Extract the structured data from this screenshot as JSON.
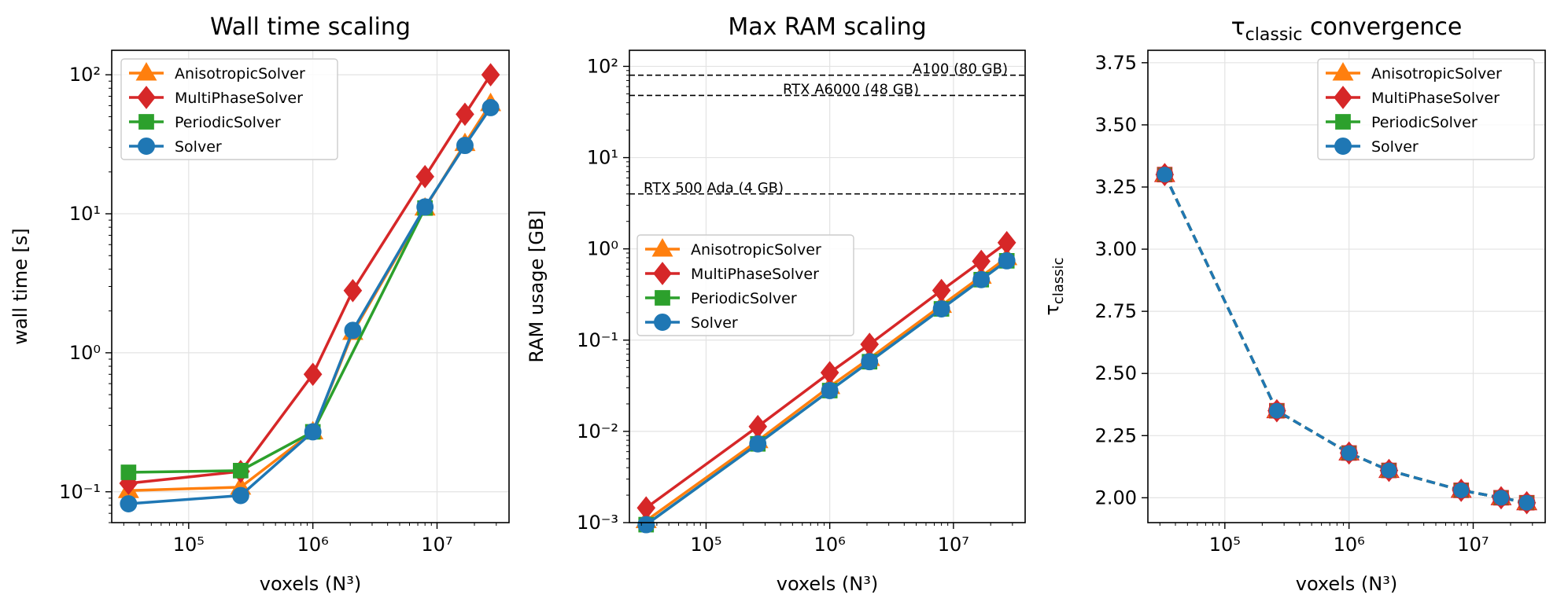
{
  "series_styles": {
    "AnisotropicSolver": {
      "color": "#ff7f0e",
      "marker": "triangle"
    },
    "MultiPhaseSolver": {
      "color": "#d62728",
      "marker": "diamond"
    },
    "PeriodicSolver": {
      "color": "#2ca02c",
      "marker": "square"
    },
    "Solver": {
      "color": "#1f77b4",
      "marker": "circle"
    }
  },
  "chart_data": [
    {
      "type": "line",
      "title": "Wall time scaling",
      "xlabel": "voxels (N³)",
      "ylabel": "wall time [s]",
      "xscale": "log",
      "yscale": "log",
      "xlim": [
        24000,
        38000000
      ],
      "ylim": [
        0.06,
        150
      ],
      "x_ticks": [
        {
          "value": 100000,
          "label": "10⁵"
        },
        {
          "value": 1000000,
          "label": "10⁶"
        },
        {
          "value": 10000000,
          "label": "10⁷"
        }
      ],
      "y_ticks": [
        {
          "value": 0.1,
          "label": "10⁻¹"
        },
        {
          "value": 1,
          "label": "10⁰"
        },
        {
          "value": 10,
          "label": "10¹"
        },
        {
          "value": 100,
          "label": "10²"
        }
      ],
      "grid": true,
      "legend_position": "top-left",
      "x": [
        32768,
        262144,
        1000000,
        2097152,
        8000000,
        16777216,
        27000000
      ],
      "series": [
        {
          "name": "AnisotropicSolver",
          "values": [
            0.102,
            0.108,
            0.27,
            1.4,
            11.0,
            32,
            62
          ]
        },
        {
          "name": "MultiPhaseSolver",
          "values": [
            0.115,
            0.14,
            0.7,
            2.8,
            18.5,
            52,
            100
          ]
        },
        {
          "name": "PeriodicSolver",
          "values": [
            0.138,
            0.142,
            0.27,
            null,
            11.0,
            null,
            null
          ]
        },
        {
          "name": "Solver",
          "values": [
            0.082,
            0.094,
            0.27,
            1.45,
            11.2,
            31,
            58
          ]
        }
      ]
    },
    {
      "type": "line",
      "title": "Max RAM scaling",
      "xlabel": "voxels (N³)",
      "ylabel": "RAM usage [GB]",
      "xscale": "log",
      "yscale": "log",
      "xlim": [
        24000,
        38000000
      ],
      "ylim": [
        0.001,
        150
      ],
      "x_ticks": [
        {
          "value": 100000,
          "label": "10⁵"
        },
        {
          "value": 1000000,
          "label": "10⁶"
        },
        {
          "value": 10000000,
          "label": "10⁷"
        }
      ],
      "y_ticks": [
        {
          "value": 0.001,
          "label": "10⁻³"
        },
        {
          "value": 0.01,
          "label": "10⁻²"
        },
        {
          "value": 0.1,
          "label": "10⁻¹"
        },
        {
          "value": 1,
          "label": "10⁰"
        },
        {
          "value": 10,
          "label": "10¹"
        },
        {
          "value": 100,
          "label": "10²"
        }
      ],
      "grid": true,
      "legend_position": "center-left",
      "x": [
        32768,
        262144,
        1000000,
        2097152,
        8000000,
        16777216,
        27000000
      ],
      "series": [
        {
          "name": "AnisotropicSolver",
          "values": [
            0.00105,
            0.0079,
            0.031,
            0.063,
            0.24,
            0.5,
            0.8
          ]
        },
        {
          "name": "MultiPhaseSolver",
          "values": [
            0.00145,
            0.0113,
            0.044,
            0.09,
            0.35,
            0.73,
            1.17
          ]
        },
        {
          "name": "PeriodicSolver",
          "values": [
            0.00095,
            0.0073,
            0.028,
            0.058,
            0.22,
            0.46,
            0.74
          ]
        },
        {
          "name": "Solver",
          "values": [
            0.00095,
            0.0073,
            0.028,
            0.058,
            0.22,
            0.46,
            0.74
          ]
        }
      ],
      "reference_lines": [
        {
          "label": "A100 (80 GB)",
          "value": 80,
          "label_anchor": "end"
        },
        {
          "label": "RTX A6000 (48 GB)",
          "value": 48,
          "label_anchor": "middle"
        },
        {
          "label": "RTX 500 Ada (4 GB)",
          "value": 4,
          "label_anchor": "start"
        }
      ]
    },
    {
      "type": "line",
      "title_main": "τ",
      "title_sub": "classic",
      "title_rest": " convergence",
      "xlabel": "voxels (N³)",
      "ylabel_main": "τ",
      "ylabel_sub": "classic",
      "xscale": "log",
      "yscale": "linear",
      "xlim": [
        24000,
        38000000
      ],
      "ylim": [
        1.9,
        3.8
      ],
      "x_ticks": [
        {
          "value": 100000,
          "label": "10⁵"
        },
        {
          "value": 1000000,
          "label": "10⁶"
        },
        {
          "value": 10000000,
          "label": "10⁷"
        }
      ],
      "y_ticks": [
        {
          "value": 2.0,
          "label": "2.00"
        },
        {
          "value": 2.25,
          "label": "2.25"
        },
        {
          "value": 2.5,
          "label": "2.50"
        },
        {
          "value": 2.75,
          "label": "2.75"
        },
        {
          "value": 3.0,
          "label": "3.00"
        },
        {
          "value": 3.25,
          "label": "3.25"
        },
        {
          "value": 3.5,
          "label": "3.50"
        },
        {
          "value": 3.75,
          "label": "3.75"
        }
      ],
      "grid": true,
      "legend_position": "top-right",
      "line_style": "dashed",
      "x": [
        32768,
        262144,
        1000000,
        2097152,
        8000000,
        16777216,
        27000000
      ],
      "series": [
        {
          "name": "AnisotropicSolver",
          "values": [
            3.3,
            2.35,
            2.18,
            2.11,
            2.03,
            2.0,
            1.98
          ]
        },
        {
          "name": "MultiPhaseSolver",
          "values": [
            3.3,
            2.35,
            2.18,
            2.11,
            2.03,
            2.0,
            1.98
          ]
        },
        {
          "name": "PeriodicSolver",
          "values": [
            3.3,
            2.35,
            2.18,
            2.11,
            2.03,
            2.0,
            1.98
          ]
        },
        {
          "name": "Solver",
          "values": [
            3.3,
            2.35,
            2.18,
            2.11,
            2.03,
            2.0,
            1.98
          ]
        }
      ]
    }
  ]
}
